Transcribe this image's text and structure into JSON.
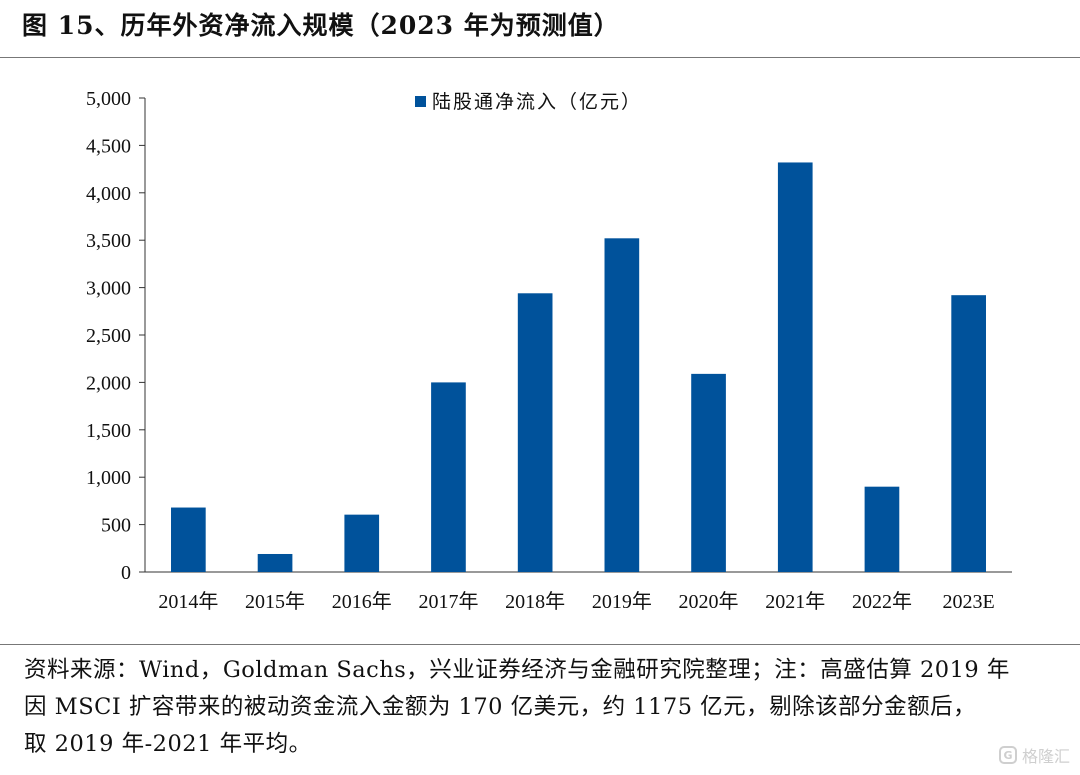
{
  "figure": {
    "title": "图 15、历年外资净流入规模（2023 年为预测值）"
  },
  "chart_data": {
    "type": "bar",
    "title": "",
    "xlabel": "",
    "ylabel": "",
    "categories": [
      "2014年",
      "2015年",
      "2016年",
      "2017年",
      "2018年",
      "2019年",
      "2020年",
      "2021年",
      "2022年",
      "2023E"
    ],
    "series": [
      {
        "name": "陆股通净流入（亿元）",
        "values": [
          680,
          190,
          605,
          2000,
          2940,
          3520,
          2090,
          4320,
          900,
          2920
        ],
        "color": "#00529B"
      }
    ],
    "ylim": [
      0,
      5000
    ],
    "yticks": [
      0,
      500,
      1000,
      1500,
      2000,
      2500,
      3000,
      3500,
      4000,
      4500,
      5000
    ],
    "ytick_labels": [
      "0",
      "500",
      "1,000",
      "1,500",
      "2,000",
      "2,500",
      "3,000",
      "3,500",
      "4,000",
      "4,500",
      "5,000"
    ],
    "grid": false,
    "legend_position": "top-center"
  },
  "note": {
    "lines": [
      "资料来源：Wind，Goldman Sachs，兴业证券经济与金融研究院整理；注：高盛估算 2019 年",
      "因 MSCI 扩容带来的被动资金流入金额为 170 亿美元，约 1175 亿元，剔除该部分金额后，",
      "取 2019 年-2021 年平均。"
    ]
  },
  "watermark": {
    "icon": "gelonghui-logo-icon",
    "text": "格隆汇"
  }
}
